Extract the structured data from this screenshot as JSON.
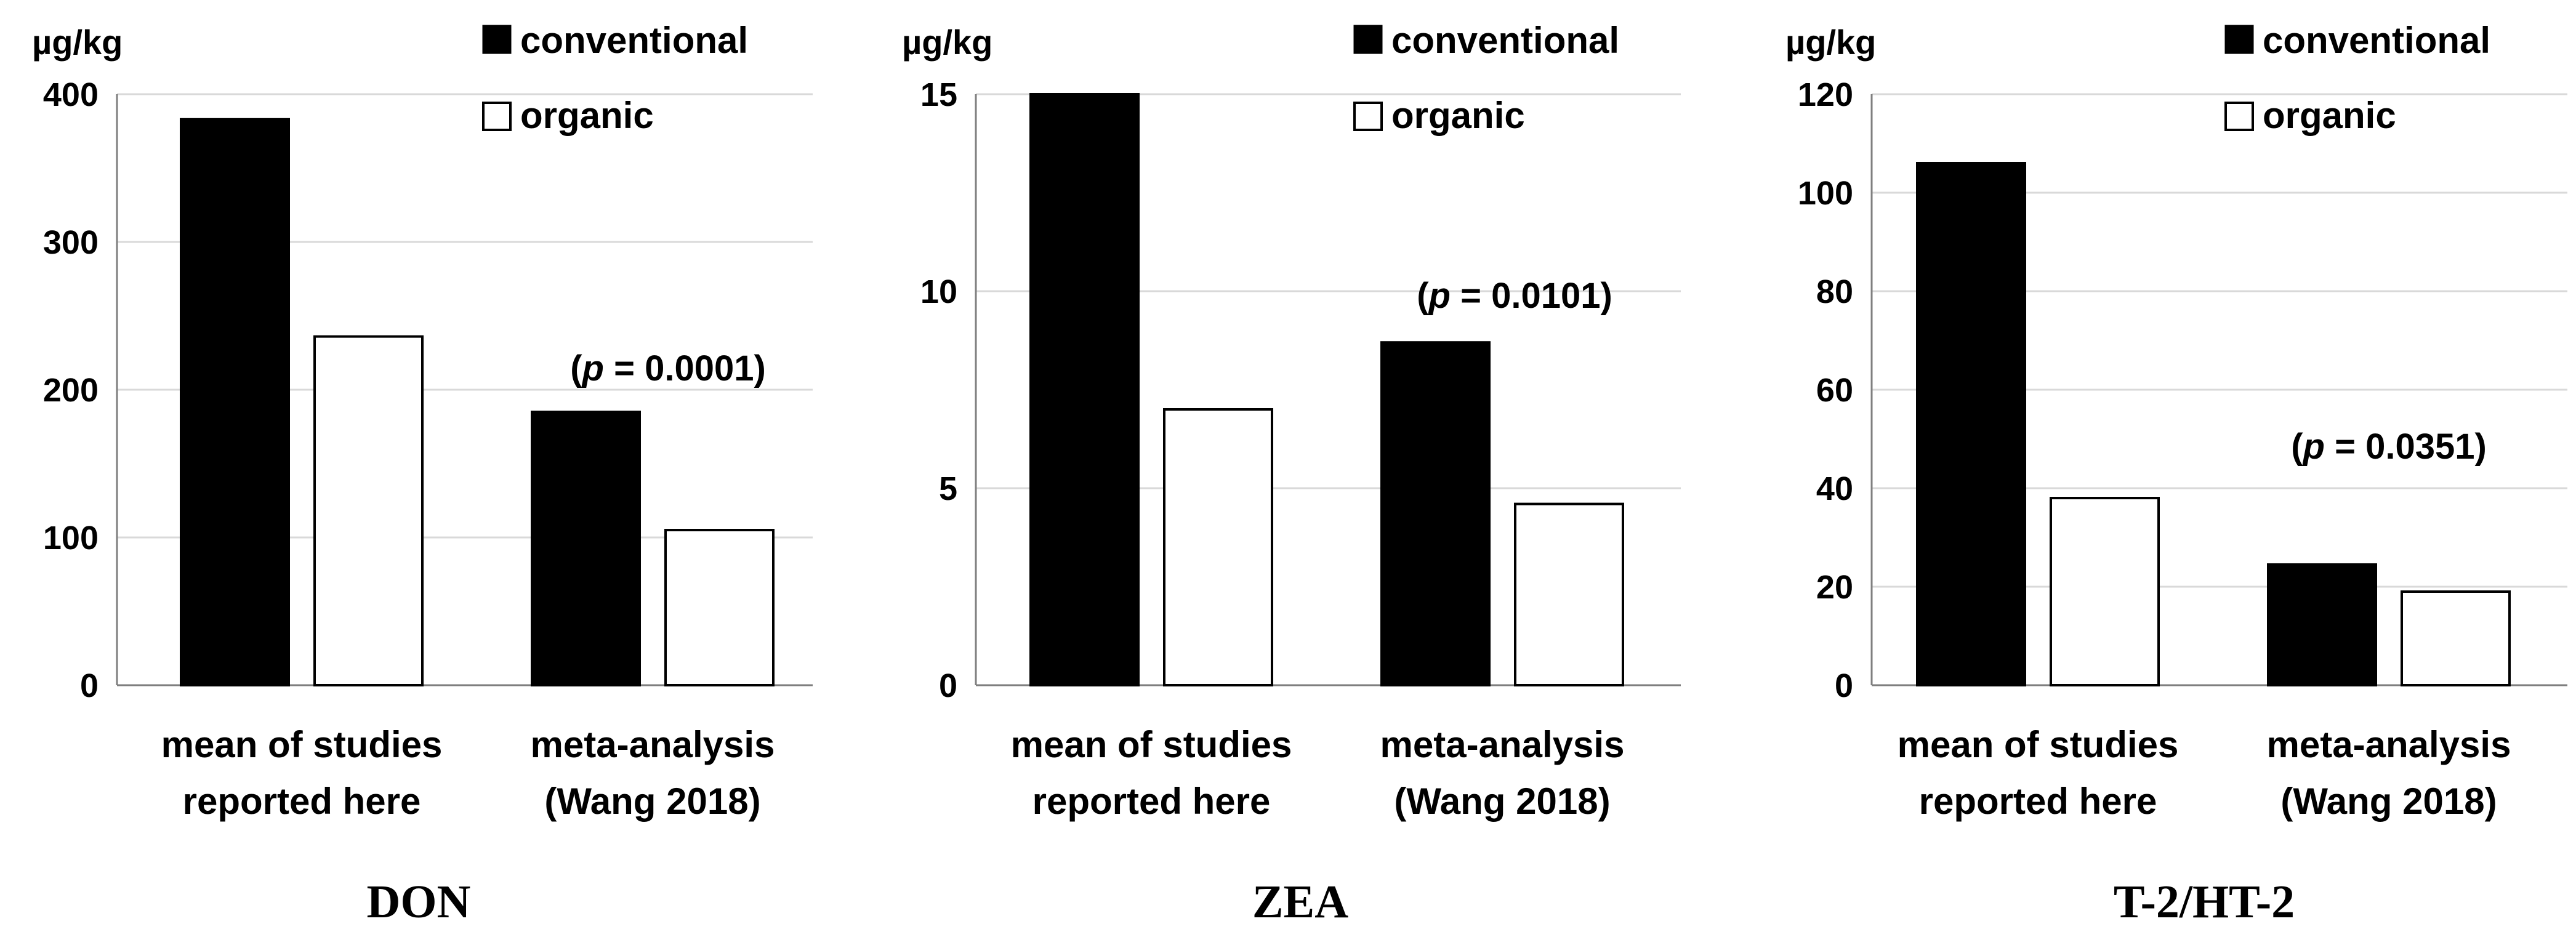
{
  "chart_data": [
    {
      "type": "bar",
      "title": "DON",
      "ylabel": "µg/kg",
      "ylim": [
        0,
        400
      ],
      "yticks": [
        "0",
        "100",
        "200",
        "300",
        "400"
      ],
      "categories": [
        [
          "mean of studies",
          "reported here"
        ],
        [
          "meta-analysis",
          "(Wang 2018)"
        ]
      ],
      "series": [
        {
          "name": "conventional",
          "values": [
            383,
            185
          ]
        },
        {
          "name": "organic",
          "values": [
            236,
            105
          ]
        }
      ],
      "annotation": {
        "category": 1,
        "prefix": "(",
        "p": "p",
        "rest": " = 0.0001)"
      },
      "legend": {
        "conventional": "conventional",
        "organic": "organic"
      }
    },
    {
      "type": "bar",
      "title": "ZEA",
      "ylabel": "µg/kg",
      "ylim": [
        0,
        15
      ],
      "yticks": [
        "0",
        "5",
        "10",
        "15"
      ],
      "categories": [
        [
          "mean of studies",
          "reported here"
        ],
        [
          "meta-analysis",
          "(Wang 2018)"
        ]
      ],
      "series": [
        {
          "name": "conventional",
          "values": [
            15,
            8.7
          ]
        },
        {
          "name": "organic",
          "values": [
            7,
            4.6
          ]
        }
      ],
      "annotation": {
        "category": 1,
        "prefix": "(",
        "p": "p",
        "rest": " = 0.0101)"
      },
      "legend": {
        "conventional": "conventional",
        "organic": "organic"
      }
    },
    {
      "type": "bar",
      "title": "T-2/HT-2",
      "ylabel": "µg/kg",
      "ylim": [
        0,
        120
      ],
      "yticks": [
        "0",
        "20",
        "40",
        "60",
        "80",
        "100",
        "120"
      ],
      "categories": [
        [
          "mean of studies",
          "reported here"
        ],
        [
          "meta-analysis",
          "(Wang 2018)"
        ]
      ],
      "series": [
        {
          "name": "conventional",
          "values": [
            106,
            24.5
          ]
        },
        {
          "name": "organic",
          "values": [
            38,
            19
          ]
        }
      ],
      "annotation": {
        "category": 1,
        "prefix": "(",
        "p": "p",
        "rest": " = 0.0351)"
      },
      "legend": {
        "conventional": "conventional",
        "organic": "organic"
      }
    }
  ]
}
